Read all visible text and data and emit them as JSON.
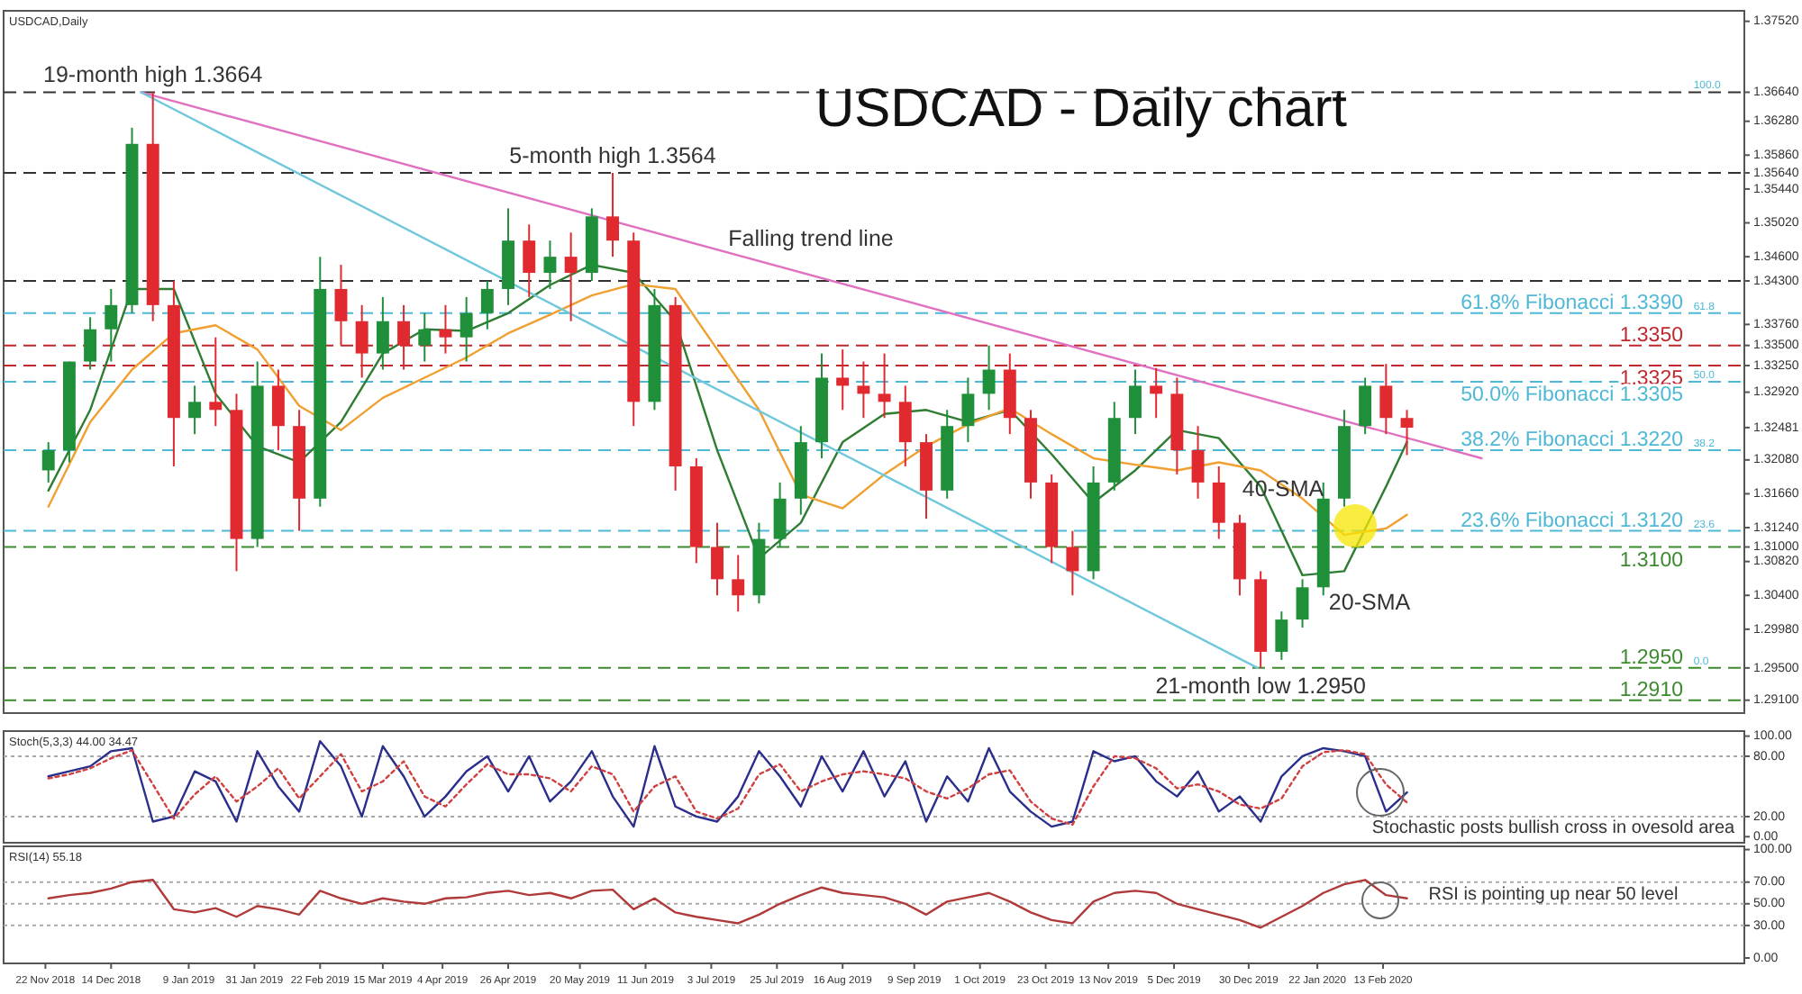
{
  "chart_data": [
    {
      "type": "candlestick",
      "title": "USDCAD - Daily chart",
      "subtitle": "USDCAD,Daily",
      "tick_labels": "y",
      "xlim": [
        "2018-11-08",
        "2020-06-13"
      ],
      "ylim": [
        1.2894,
        1.3765
      ],
      "yticks": [
        {
          "value": 1.3752,
          "label": "1.37520"
        },
        {
          "value": 1.3664,
          "label": "1.36640"
        },
        {
          "value": 1.3628,
          "label": "1.36280"
        },
        {
          "value": 1.3586,
          "label": "1.35860"
        },
        {
          "value": 1.3564,
          "label": "1.35640"
        },
        {
          "value": 1.3544,
          "label": "1.35440"
        },
        {
          "value": 1.3502,
          "label": "1.35020"
        },
        {
          "value": 1.346,
          "label": "1.34600"
        },
        {
          "value": 1.343,
          "label": "1.34300"
        },
        {
          "value": 1.3376,
          "label": "1.33760"
        },
        {
          "value": 1.335,
          "label": "1.33500"
        },
        {
          "value": 1.3325,
          "label": "1.33250"
        },
        {
          "value": 1.3292,
          "label": "1.32920"
        },
        {
          "value": 1.32481,
          "label": "1.32481"
        },
        {
          "value": 1.3208,
          "label": "1.32080"
        },
        {
          "value": 1.3166,
          "label": "1.31660"
        },
        {
          "value": 1.3124,
          "label": "1.31240"
        },
        {
          "value": 1.31,
          "label": "1.31000"
        },
        {
          "value": 1.3082,
          "label": "1.30820"
        },
        {
          "value": 1.304,
          "label": "1.30400"
        },
        {
          "value": 1.2998,
          "label": "1.29980"
        },
        {
          "value": 1.295,
          "label": "1.29500"
        },
        {
          "value": 1.291,
          "label": "1.29100"
        }
      ],
      "x": [
        "2018-11-23",
        "2018-11-30",
        "2018-12-07",
        "2018-12-14",
        "2018-12-21",
        "2018-12-28",
        "2019-01-04",
        "2019-01-11",
        "2019-01-18",
        "2019-01-25",
        "2019-02-01",
        "2019-02-08",
        "2019-02-15",
        "2019-02-22",
        "2019-03-01",
        "2019-03-08",
        "2019-03-15",
        "2019-03-22",
        "2019-03-29",
        "2019-04-05",
        "2019-04-12",
        "2019-04-19",
        "2019-04-26",
        "2019-05-03",
        "2019-05-10",
        "2019-05-17",
        "2019-05-24",
        "2019-05-31",
        "2019-06-07",
        "2019-06-14",
        "2019-06-21",
        "2019-06-28",
        "2019-07-05",
        "2019-07-12",
        "2019-07-19",
        "2019-07-26",
        "2019-08-02",
        "2019-08-09",
        "2019-08-16",
        "2019-08-23",
        "2019-08-30",
        "2019-09-06",
        "2019-09-13",
        "2019-09-20",
        "2019-09-27",
        "2019-10-04",
        "2019-10-11",
        "2019-10-18",
        "2019-10-25",
        "2019-11-01",
        "2019-11-08",
        "2019-11-15",
        "2019-11-22",
        "2019-11-29",
        "2019-12-06",
        "2019-12-13",
        "2019-12-20",
        "2019-12-27",
        "2020-01-03",
        "2020-01-10",
        "2020-01-17",
        "2020-01-24",
        "2020-01-31",
        "2020-02-07",
        "2020-02-14",
        "2020-02-21"
      ],
      "ohlc": [
        [
          1.3195,
          1.323,
          1.318,
          1.322
        ],
        [
          1.322,
          1.333,
          1.3205,
          1.333
        ],
        [
          1.333,
          1.3385,
          1.332,
          1.337
        ],
        [
          1.337,
          1.342,
          1.333,
          1.34
        ],
        [
          1.34,
          1.362,
          1.339,
          1.36
        ],
        [
          1.36,
          1.3664,
          1.338,
          1.34
        ],
        [
          1.34,
          1.343,
          1.32,
          1.326
        ],
        [
          1.326,
          1.33,
          1.324,
          1.328
        ],
        [
          1.328,
          1.336,
          1.325,
          1.327
        ],
        [
          1.327,
          1.329,
          1.307,
          1.311
        ],
        [
          1.311,
          1.333,
          1.31,
          1.33
        ],
        [
          1.33,
          1.332,
          1.322,
          1.325
        ],
        [
          1.325,
          1.327,
          1.312,
          1.316
        ],
        [
          1.316,
          1.346,
          1.315,
          1.342
        ],
        [
          1.342,
          1.345,
          1.335,
          1.338
        ],
        [
          1.338,
          1.34,
          1.331,
          1.334
        ],
        [
          1.334,
          1.341,
          1.332,
          1.338
        ],
        [
          1.338,
          1.34,
          1.332,
          1.335
        ],
        [
          1.335,
          1.339,
          1.333,
          1.337
        ],
        [
          1.337,
          1.34,
          1.334,
          1.336
        ],
        [
          1.336,
          1.341,
          1.333,
          1.339
        ],
        [
          1.339,
          1.343,
          1.337,
          1.342
        ],
        [
          1.342,
          1.352,
          1.34,
          1.348
        ],
        [
          1.348,
          1.35,
          1.341,
          1.344
        ],
        [
          1.344,
          1.348,
          1.342,
          1.346
        ],
        [
          1.346,
          1.349,
          1.338,
          1.344
        ],
        [
          1.344,
          1.352,
          1.343,
          1.351
        ],
        [
          1.351,
          1.3564,
          1.346,
          1.348
        ],
        [
          1.348,
          1.349,
          1.325,
          1.328
        ],
        [
          1.328,
          1.342,
          1.327,
          1.34
        ],
        [
          1.34,
          1.341,
          1.317,
          1.32
        ],
        [
          1.32,
          1.321,
          1.308,
          1.31
        ],
        [
          1.31,
          1.313,
          1.304,
          1.306
        ],
        [
          1.306,
          1.309,
          1.302,
          1.304
        ],
        [
          1.304,
          1.313,
          1.303,
          1.311
        ],
        [
          1.311,
          1.318,
          1.31,
          1.316
        ],
        [
          1.316,
          1.325,
          1.314,
          1.323
        ],
        [
          1.323,
          1.334,
          1.321,
          1.331
        ],
        [
          1.331,
          1.3345,
          1.327,
          1.33
        ],
        [
          1.33,
          1.333,
          1.326,
          1.329
        ],
        [
          1.329,
          1.334,
          1.326,
          1.328
        ],
        [
          1.328,
          1.33,
          1.32,
          1.323
        ],
        [
          1.323,
          1.324,
          1.3135,
          1.317
        ],
        [
          1.317,
          1.327,
          1.316,
          1.325
        ],
        [
          1.325,
          1.331,
          1.323,
          1.329
        ],
        [
          1.329,
          1.335,
          1.327,
          1.332
        ],
        [
          1.332,
          1.334,
          1.324,
          1.326
        ],
        [
          1.326,
          1.327,
          1.316,
          1.318
        ],
        [
          1.318,
          1.319,
          1.308,
          1.31
        ],
        [
          1.31,
          1.312,
          1.304,
          1.307
        ],
        [
          1.307,
          1.32,
          1.306,
          1.318
        ],
        [
          1.318,
          1.328,
          1.317,
          1.326
        ],
        [
          1.326,
          1.332,
          1.324,
          1.33
        ],
        [
          1.33,
          1.3322,
          1.326,
          1.329
        ],
        [
          1.329,
          1.331,
          1.319,
          1.322
        ],
        [
          1.322,
          1.325,
          1.316,
          1.318
        ],
        [
          1.318,
          1.32,
          1.311,
          1.313
        ],
        [
          1.313,
          1.314,
          1.304,
          1.306
        ],
        [
          1.306,
          1.307,
          1.295,
          1.297
        ],
        [
          1.297,
          1.302,
          1.296,
          1.301
        ],
        [
          1.301,
          1.306,
          1.3,
          1.305
        ],
        [
          1.305,
          1.318,
          1.304,
          1.316
        ],
        [
          1.316,
          1.327,
          1.315,
          1.325
        ],
        [
          1.325,
          1.331,
          1.324,
          1.33
        ],
        [
          1.33,
          1.3327,
          1.324,
          1.326
        ],
        [
          1.326,
          1.327,
          1.3214,
          1.3248
        ]
      ],
      "series": [
        {
          "type": "line",
          "color": "#2e7d32",
          "x": [
            "2018-11-23",
            "2018-12-07",
            "2018-12-21",
            "2019-01-04",
            "2019-01-18",
            "2019-02-01",
            "2019-02-15",
            "2019-03-01",
            "2019-03-15",
            "2019-03-29",
            "2019-04-12",
            "2019-04-26",
            "2019-05-10",
            "2019-05-24",
            "2019-06-07",
            "2019-06-21",
            "2019-07-05",
            "2019-07-19",
            "2019-08-02",
            "2019-08-16",
            "2019-08-30",
            "2019-09-13",
            "2019-09-27",
            "2019-10-11",
            "2019-10-25",
            "2019-11-08",
            "2019-11-22",
            "2019-12-06",
            "2019-12-20",
            "2020-01-03",
            "2020-01-17",
            "2020-01-31",
            "2020-02-14",
            "2020-02-21"
          ],
          "values": [
            1.317,
            1.327,
            1.342,
            1.342,
            1.329,
            1.3225,
            1.3205,
            1.3255,
            1.334,
            1.337,
            1.3368,
            1.339,
            1.3425,
            1.345,
            1.344,
            1.338,
            1.322,
            1.3086,
            1.313,
            1.323,
            1.3265,
            1.327,
            1.3255,
            1.327,
            1.3215,
            1.3155,
            1.3195,
            1.3245,
            1.3235,
            1.3175,
            1.3065,
            1.307,
            1.3175,
            1.323
          ]
        },
        {
          "type": "line",
          "color": "#f0a030",
          "x": [
            "2018-11-23",
            "2018-12-07",
            "2018-12-21",
            "2019-01-04",
            "2019-01-18",
            "2019-02-01",
            "2019-02-15",
            "2019-03-01",
            "2019-03-15",
            "2019-03-29",
            "2019-04-12",
            "2019-04-26",
            "2019-05-10",
            "2019-05-24",
            "2019-06-07",
            "2019-06-21",
            "2019-07-05",
            "2019-07-19",
            "2019-08-02",
            "2019-08-16",
            "2019-08-30",
            "2019-09-13",
            "2019-09-27",
            "2019-10-11",
            "2019-10-25",
            "2019-11-08",
            "2019-11-22",
            "2019-12-06",
            "2019-12-20",
            "2020-01-03",
            "2020-01-17",
            "2020-01-31",
            "2020-02-14",
            "2020-02-21"
          ],
          "values": [
            1.315,
            1.3255,
            1.332,
            1.3365,
            1.3375,
            1.3345,
            1.3275,
            1.3245,
            1.3285,
            1.331,
            1.3335,
            1.3365,
            1.3388,
            1.3412,
            1.3426,
            1.342,
            1.3345,
            1.327,
            1.3165,
            1.3148,
            1.319,
            1.3225,
            1.3252,
            1.3272,
            1.324,
            1.321,
            1.3202,
            1.3195,
            1.3205,
            1.3195,
            1.316,
            1.3115,
            1.3123,
            1.314
          ]
        },
        {
          "type": "line",
          "color": "#e070c0",
          "x": [
            "2018-12-24",
            "2020-03-17"
          ],
          "values": [
            1.3664,
            1.321
          ]
        },
        {
          "type": "line",
          "color": "#70c8dc",
          "x": [
            "2018-12-24",
            "2020-01-02"
          ],
          "values": [
            1.3664,
            1.295
          ]
        }
      ],
      "ref_lines": [
        {
          "axis": "y",
          "value": 1.3664,
          "color": "#333333",
          "line_style": "dashed"
        },
        {
          "axis": "y",
          "value": 1.3564,
          "color": "#333333",
          "line_style": "dashed"
        },
        {
          "axis": "y",
          "value": 1.343,
          "color": "#333333",
          "line_style": "dashed"
        },
        {
          "axis": "y",
          "value": 1.335,
          "label": "1.3350",
          "color": "#c0282d",
          "line_style": "dashed"
        },
        {
          "axis": "y",
          "value": 1.3325,
          "label": "1.3325",
          "color": "#c0282d",
          "line_style": "dashed"
        },
        {
          "axis": "y",
          "value": 1.31,
          "label": "1.3100",
          "color": "#3c8a2e",
          "line_style": "dashed"
        },
        {
          "axis": "y",
          "value": 1.291,
          "label": "1.2910",
          "color": "#3c8a2e",
          "line_style": "dashed"
        },
        {
          "axis": "y",
          "value": 1.339,
          "label": "61.8% Fibonacci 1.3390",
          "color": "#4fb8d6",
          "line_style": "dashed"
        },
        {
          "axis": "y",
          "value": 1.3305,
          "label": "50.0% Fibonacci 1.3305",
          "color": "#4fb8d6",
          "line_style": "dashed"
        },
        {
          "axis": "y",
          "value": 1.322,
          "label": "38.2% Fibonacci 1.3220",
          "color": "#4fb8d6",
          "line_style": "dashed"
        },
        {
          "axis": "y",
          "value": 1.312,
          "label": "23.6% Fibonacci 1.3120",
          "color": "#4fb8d6",
          "line_style": "dashed"
        },
        {
          "axis": "y",
          "value": 1.295,
          "label": "1.2950",
          "color": "#3c8a2e",
          "line_style": "dashed"
        }
      ],
      "annotations": [
        {
          "text": "19-month high 1.3664",
          "x": "2018-12-28",
          "y": 1.3664
        },
        {
          "text": "5-month high 1.3564",
          "x": "2019-05-31",
          "y": 1.3564
        },
        "Falling trend line",
        "40-SMA",
        "20-SMA",
        {
          "text": "21-month low 1.2950",
          "x": "2020-01-03",
          "y": 1.295
        },
        {
          "text": "100.0",
          "x": "2020-05-27",
          "y": 1.3664
        },
        {
          "text": "61.8",
          "x": "2020-05-27",
          "y": 1.339
        },
        {
          "text": "50.0",
          "x": "2020-05-27",
          "y": 1.3305
        },
        {
          "text": "38.2",
          "x": "2020-05-27",
          "y": 1.322
        },
        {
          "text": "23.6",
          "x": "2020-05-27",
          "y": 1.312
        },
        {
          "text": "0.0",
          "x": "2020-05-27",
          "y": 1.295
        }
      ]
    },
    {
      "type": "line",
      "title": "Stoch(5,3,3) 44.00 34.47",
      "tick_labels": "y",
      "xlim": [
        "2018-11-08",
        "2020-06-13"
      ],
      "ylim": [
        -6,
        105
      ],
      "yticks": [
        {
          "value": 100,
          "label": "100.00"
        },
        {
          "value": 80,
          "label": "80.00"
        },
        {
          "value": 20,
          "label": "20.00"
        },
        {
          "value": 0,
          "label": "0.00"
        }
      ],
      "x": [
        "2018-11-23",
        "2018-11-30",
        "2018-12-07",
        "2018-12-14",
        "2018-12-21",
        "2018-12-28",
        "2019-01-04",
        "2019-01-11",
        "2019-01-18",
        "2019-01-25",
        "2019-02-01",
        "2019-02-08",
        "2019-02-15",
        "2019-02-22",
        "2019-03-01",
        "2019-03-08",
        "2019-03-15",
        "2019-03-22",
        "2019-03-29",
        "2019-04-05",
        "2019-04-12",
        "2019-04-19",
        "2019-04-26",
        "2019-05-03",
        "2019-05-10",
        "2019-05-17",
        "2019-05-24",
        "2019-05-31",
        "2019-06-07",
        "2019-06-14",
        "2019-06-21",
        "2019-06-28",
        "2019-07-05",
        "2019-07-12",
        "2019-07-19",
        "2019-07-26",
        "2019-08-02",
        "2019-08-09",
        "2019-08-16",
        "2019-08-23",
        "2019-08-30",
        "2019-09-06",
        "2019-09-13",
        "2019-09-20",
        "2019-09-27",
        "2019-10-04",
        "2019-10-11",
        "2019-10-18",
        "2019-10-25",
        "2019-11-01",
        "2019-11-08",
        "2019-11-15",
        "2019-11-22",
        "2019-11-29",
        "2019-12-06",
        "2019-12-13",
        "2019-12-20",
        "2019-12-27",
        "2020-01-03",
        "2020-01-10",
        "2020-01-17",
        "2020-01-24",
        "2020-01-31",
        "2020-02-07",
        "2020-02-14",
        "2020-02-21"
      ],
      "series": [
        {
          "color": "#2b2f8c",
          "line_style": "solid",
          "values": [
            60,
            65,
            70,
            85,
            88,
            15,
            20,
            65,
            55,
            15,
            85,
            50,
            25,
            95,
            70,
            20,
            90,
            60,
            20,
            40,
            65,
            80,
            45,
            80,
            35,
            55,
            85,
            40,
            10,
            90,
            30,
            20,
            15,
            40,
            85,
            60,
            30,
            80,
            45,
            85,
            40,
            75,
            15,
            60,
            35,
            88,
            45,
            25,
            10,
            15,
            85,
            75,
            80,
            55,
            40,
            65,
            25,
            40,
            15,
            60,
            80,
            88,
            85,
            80,
            25,
            44
          ]
        },
        {
          "color": "#d04040",
          "line_style": "dotted",
          "values": [
            58,
            62,
            68,
            78,
            86,
            52,
            18,
            42,
            60,
            35,
            50,
            68,
            38,
            60,
            82,
            45,
            55,
            75,
            40,
            30,
            52,
            72,
            62,
            62,
            58,
            45,
            70,
            62,
            25,
            50,
            60,
            25,
            18,
            28,
            62,
            72,
            45,
            55,
            62,
            65,
            62,
            58,
            45,
            38,
            48,
            62,
            66,
            35,
            18,
            12,
            50,
            80,
            78,
            68,
            48,
            52,
            45,
            32,
            28,
            38,
            70,
            84,
            86,
            82,
            52,
            34
          ]
        }
      ],
      "ref_lines": [
        {
          "axis": "y",
          "value": 80,
          "color": "#aaaaaa",
          "line_style": "dotted"
        },
        {
          "axis": "y",
          "value": 20,
          "color": "#aaaaaa",
          "line_style": "dotted"
        }
      ],
      "annotations": [
        "Stochastic posts bullish cross in ovesold area"
      ]
    },
    {
      "type": "line",
      "title": "RSI(14) 55.18",
      "xlim": [
        "2018-11-08",
        "2020-06-13"
      ],
      "ylim": [
        -5,
        103
      ],
      "yticks": [
        {
          "value": 100,
          "label": "100.00"
        },
        {
          "value": 70,
          "label": "70.00"
        },
        {
          "value": 50,
          "label": "50.00"
        },
        {
          "value": 30,
          "label": "30.00"
        },
        {
          "value": 0,
          "label": "0.00"
        }
      ],
      "xticks": [
        {
          "value": "2018-11-22",
          "label": "22 Nov 2018"
        },
        {
          "value": "2018-12-14",
          "label": "14 Dec 2018"
        },
        {
          "value": "2019-01-09",
          "label": "9 Jan 2019"
        },
        {
          "value": "2019-01-31",
          "label": "31 Jan 2019"
        },
        {
          "value": "2019-02-22",
          "label": "22 Feb 2019"
        },
        {
          "value": "2019-03-15",
          "label": "15 Mar 2019"
        },
        {
          "value": "2019-04-04",
          "label": "4 Apr 2019"
        },
        {
          "value": "2019-04-26",
          "label": "26 Apr 2019"
        },
        {
          "value": "2019-05-20",
          "label": "20 May 2019"
        },
        {
          "value": "2019-06-11",
          "label": "11 Jun 2019"
        },
        {
          "value": "2019-07-03",
          "label": "3 Jul 2019"
        },
        {
          "value": "2019-07-25",
          "label": "25 Jul 2019"
        },
        {
          "value": "2019-08-16",
          "label": "16 Aug 2019"
        },
        {
          "value": "2019-09-09",
          "label": "9 Sep 2019"
        },
        {
          "value": "2019-10-01",
          "label": "1 Oct 2019"
        },
        {
          "value": "2019-10-23",
          "label": "23 Oct 2019"
        },
        {
          "value": "2019-11-13",
          "label": "13 Nov 2019"
        },
        {
          "value": "2019-12-05",
          "label": "5 Dec 2019"
        },
        {
          "value": "2019-12-30",
          "label": "30 Dec 2019"
        },
        {
          "value": "2020-01-22",
          "label": "22 Jan 2020"
        },
        {
          "value": "2020-02-13",
          "label": "13 Feb 2020"
        }
      ],
      "x": [
        "2018-11-23",
        "2018-11-30",
        "2018-12-07",
        "2018-12-14",
        "2018-12-21",
        "2018-12-28",
        "2019-01-04",
        "2019-01-11",
        "2019-01-18",
        "2019-01-25",
        "2019-02-01",
        "2019-02-08",
        "2019-02-15",
        "2019-02-22",
        "2019-03-01",
        "2019-03-08",
        "2019-03-15",
        "2019-03-22",
        "2019-03-29",
        "2019-04-05",
        "2019-04-12",
        "2019-04-19",
        "2019-04-26",
        "2019-05-03",
        "2019-05-10",
        "2019-05-17",
        "2019-05-24",
        "2019-05-31",
        "2019-06-07",
        "2019-06-14",
        "2019-06-21",
        "2019-06-28",
        "2019-07-05",
        "2019-07-12",
        "2019-07-19",
        "2019-07-26",
        "2019-08-02",
        "2019-08-09",
        "2019-08-16",
        "2019-08-23",
        "2019-08-30",
        "2019-09-06",
        "2019-09-13",
        "2019-09-20",
        "2019-09-27",
        "2019-10-04",
        "2019-10-11",
        "2019-10-18",
        "2019-10-25",
        "2019-11-01",
        "2019-11-08",
        "2019-11-15",
        "2019-11-22",
        "2019-11-29",
        "2019-12-06",
        "2019-12-13",
        "2019-12-20",
        "2019-12-27",
        "2020-01-03",
        "2020-01-10",
        "2020-01-17",
        "2020-01-24",
        "2020-01-31",
        "2020-02-07",
        "2020-02-14",
        "2020-02-21"
      ],
      "series": [
        {
          "color": "#b03a3a",
          "values": [
            55,
            58,
            60,
            64,
            70,
            72,
            45,
            42,
            46,
            38,
            48,
            45,
            40,
            62,
            55,
            50,
            55,
            52,
            50,
            55,
            56,
            60,
            62,
            58,
            60,
            55,
            62,
            63,
            45,
            55,
            42,
            38,
            35,
            32,
            40,
            50,
            58,
            65,
            60,
            58,
            56,
            50,
            40,
            52,
            56,
            60,
            52,
            42,
            35,
            32,
            52,
            60,
            62,
            60,
            50,
            45,
            40,
            35,
            28,
            38,
            48,
            60,
            68,
            72,
            58,
            55
          ]
        }
      ],
      "ref_lines": [
        {
          "axis": "y",
          "value": 70,
          "color": "#aaaaaa",
          "line_style": "dotted"
        },
        {
          "axis": "y",
          "value": 50,
          "color": "#aaaaaa",
          "line_style": "dotted"
        },
        {
          "axis": "y",
          "value": 30,
          "color": "#aaaaaa",
          "line_style": "dotted"
        }
      ],
      "annotations": [
        "RSI is pointing up near 50 level"
      ]
    }
  ]
}
